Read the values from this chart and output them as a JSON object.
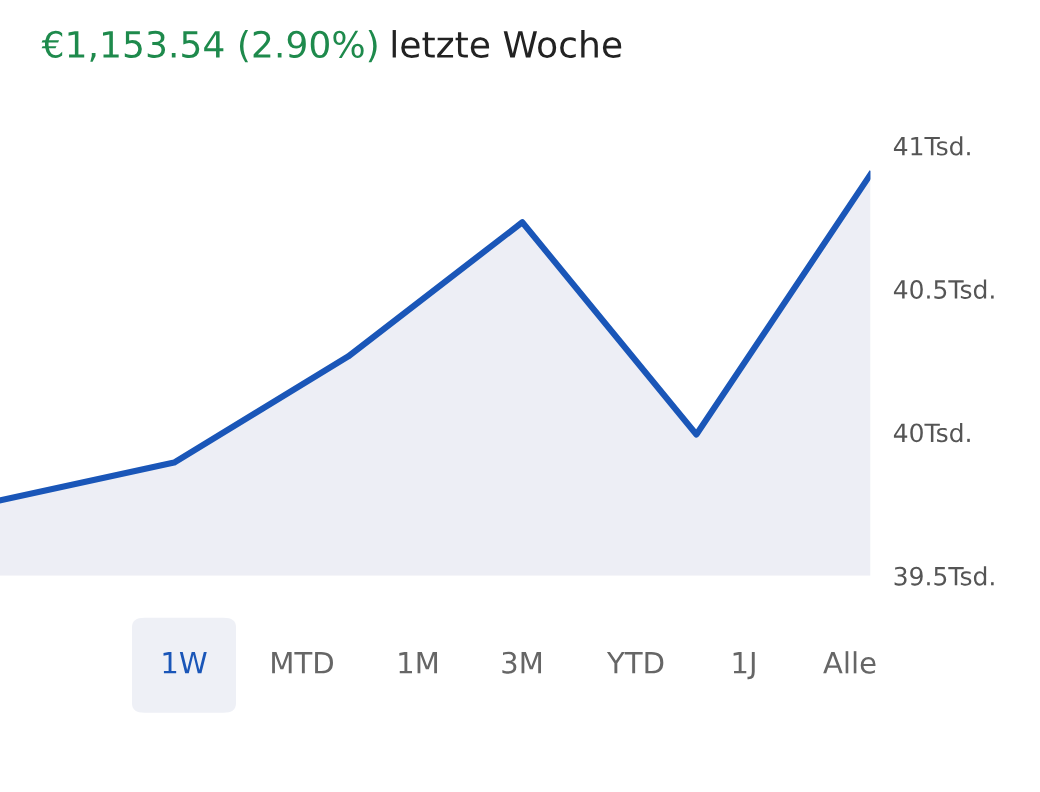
{
  "chart_data": {
    "type": "area",
    "title": "€1,153.54 (2.90%)",
    "subtitle": "letzte Woche",
    "categories": [
      null,
      null,
      null,
      null,
      null,
      null
    ],
    "series": [
      {
        "color": "#1a56b8",
        "values": [
          39.763,
          39.895,
          40.265,
          40.733,
          39.993,
          40.9
        ]
      }
    ],
    "ylim": [
      39.5,
      41
    ],
    "yticks": [
      {
        "value": 39.5,
        "label": "39.5Tsd."
      },
      {
        "value": 40,
        "label": "40Tsd."
      },
      {
        "value": 40.5,
        "label": "40.5Tsd."
      },
      {
        "value": 41,
        "label": "41Tsd."
      }
    ],
    "tick_labels": "y",
    "grid": false,
    "legend": false,
    "marker": "none",
    "line_style": "solid",
    "annotations": [
      "1W",
      "MTD",
      "1M",
      "3M",
      "YTD",
      "1J",
      "Alle"
    ]
  }
}
